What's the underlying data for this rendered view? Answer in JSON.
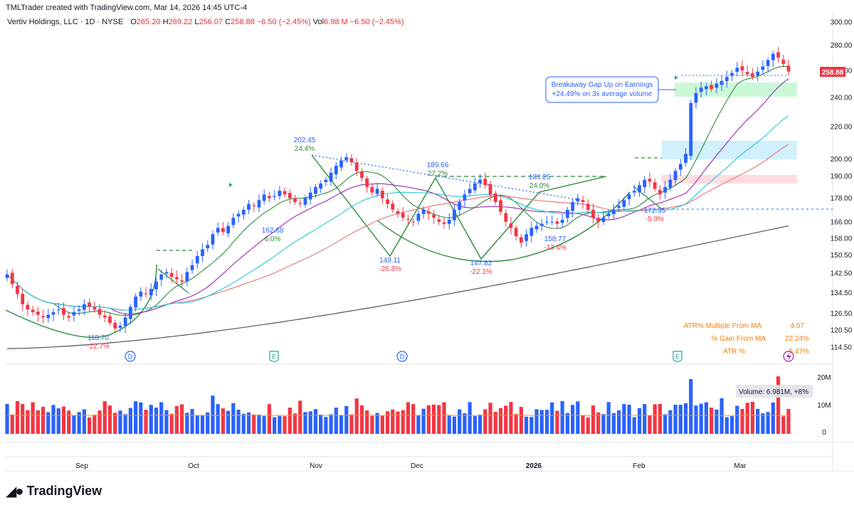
{
  "header": {
    "credit": "TMLTrader created with TradingView.com, Mar 14, 2026 14:45 UTC-4",
    "symbol": "Vertiv Holdings, LLC · 1D · NYSE",
    "o_label": "O",
    "o_value": "265.20",
    "h_label": "H",
    "h_value": "269.22",
    "l_label": "L",
    "l_value": "256.07",
    "c_label": "C",
    "c_value": "258.88",
    "change": "−6.50 (−2.45%)",
    "vol_label": "Vol",
    "vol_value": "6.98 M",
    "vol_change": "−6.50 (−2.45%)"
  },
  "price_badge": "258.88",
  "volume_badge": "Volume: 6.981M, +8%",
  "callout": {
    "line1": "Breakaway Gap Up on Earnings",
    "line2": "+24.49% on 3x average volume"
  },
  "stats": [
    {
      "label": "ATR% Multiple From MA",
      "value": "4.07"
    },
    {
      "label": "% Gain From MA",
      "value": "22.24%"
    },
    {
      "label": "ATR %",
      "value": "5.47%"
    }
  ],
  "brand": "TradingView",
  "colors": {
    "up": "#2962ff",
    "down": "#f23645",
    "fast_ma": "#2e8b3e",
    "ma2": "#9c27b0",
    "ma3": "#e57373",
    "ma4": "#26c6da",
    "ma200": "#555555",
    "stats": "#f57c00"
  },
  "chart_data": {
    "type": "candlestick",
    "x_axis_ticks": [
      "Sep",
      "Oct",
      "Nov",
      "Dec",
      "2026",
      "Feb",
      "Mar"
    ],
    "y_axis_ticks": [
      300.0,
      280.0,
      260.0,
      240.0,
      220.0,
      200.0,
      190.0,
      178.0,
      166.0,
      158.0,
      150.5,
      142.5,
      134.5,
      126.5,
      120.5,
      114.5
    ],
    "y_scale": "log",
    "volume_axis_ticks": [
      "20M",
      "10M",
      "0"
    ],
    "annotations": [
      {
        "price": "118.70",
        "pct": "-22.7%",
        "date": "Sep 5"
      },
      {
        "price": "162.68",
        "pct": "6.0%",
        "date": "Oct 24"
      },
      {
        "price": "202.45",
        "pct": "24.4%",
        "date": "Oct 29"
      },
      {
        "price": "149.11",
        "pct": "-26.3%",
        "date": "Nov 21"
      },
      {
        "price": "189.66",
        "pct": "27.2%",
        "date": "Dec 10"
      },
      {
        "price": "147.82",
        "pct": "-22.1%",
        "date": "Dec 17"
      },
      {
        "price": "183.25",
        "pct": "24.0%",
        "date": "Jan 6"
      },
      {
        "price": "158.77",
        "pct": "-13.4%",
        "date": "Jan 12"
      },
      {
        "price": "172.35",
        "pct": "-5.9%",
        "date": "Feb 3"
      }
    ],
    "event_markers": [
      {
        "label": "D",
        "date": "Sep 10"
      },
      {
        "label": "E",
        "date": "Oct 22"
      },
      {
        "label": "D",
        "date": "Nov 25"
      },
      {
        "label": "E",
        "date": "Feb 11"
      }
    ],
    "dividend_marker": "Mar 12",
    "last_close": 258.88,
    "approx_closes": [
      142,
      138,
      134,
      130,
      128,
      127,
      126,
      125,
      126,
      127,
      128,
      126,
      125,
      127,
      128,
      130,
      129,
      128,
      126,
      125,
      123,
      121,
      122,
      125,
      129,
      133,
      135,
      134,
      136,
      139,
      142,
      143,
      141,
      140,
      139,
      143,
      146,
      150,
      153,
      155,
      160,
      163,
      161,
      164,
      168,
      170,
      172,
      175,
      174,
      177,
      180,
      178,
      179,
      182,
      180,
      178,
      176,
      175,
      178,
      181,
      184,
      186,
      188,
      192,
      196,
      199,
      201,
      198,
      193,
      189,
      184,
      181,
      183,
      178,
      175,
      172,
      170,
      168,
      167,
      166,
      170,
      172,
      170,
      168,
      166,
      165,
      167,
      172,
      176,
      180,
      183,
      186,
      188,
      185,
      180,
      176,
      171,
      166,
      163,
      159,
      156,
      160,
      163,
      164,
      165,
      166,
      166,
      165,
      167,
      172,
      176,
      178,
      176,
      172,
      168,
      166,
      168,
      170,
      172,
      174,
      177,
      180,
      182,
      185,
      188,
      187,
      183,
      180,
      184,
      188,
      193,
      197,
      203,
      236,
      243,
      247,
      248,
      246,
      250,
      252,
      255,
      258,
      262,
      260,
      257,
      255,
      259,
      263,
      268,
      273,
      270,
      265,
      259
    ]
  }
}
